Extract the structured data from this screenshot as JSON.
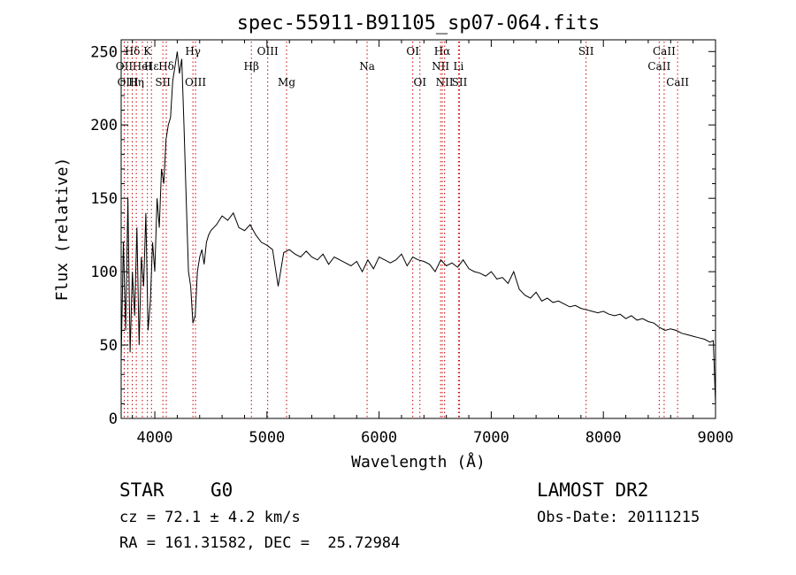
{
  "chart_data": {
    "type": "line",
    "title": "spec-55911-B91105_sp07-064.fits",
    "xlabel": "Wavelength (Å)",
    "ylabel": "Flux (relative)",
    "xlim": [
      3700,
      9000
    ],
    "ylim": [
      0,
      258
    ],
    "xticks": [
      4000,
      5000,
      6000,
      7000,
      8000,
      9000
    ],
    "yticks": [
      0,
      50,
      100,
      150,
      200,
      250
    ],
    "grid": false,
    "line_color": "#000000",
    "marker_color": "#cc0000",
    "series": [
      {
        "x": [
          3700,
          3720,
          3740,
          3760,
          3780,
          3800,
          3820,
          3840,
          3860,
          3880,
          3900,
          3920,
          3940,
          3960,
          3980,
          4000,
          4020,
          4040,
          4060,
          4080,
          4100,
          4120,
          4140,
          4160,
          4180,
          4200,
          4220,
          4240,
          4260,
          4280,
          4300,
          4320,
          4340,
          4360,
          4380,
          4400,
          4420,
          4440,
          4460,
          4480,
          4500,
          4550,
          4600,
          4650,
          4700,
          4750,
          4800,
          4850,
          4900,
          4950,
          5000,
          5050,
          5100,
          5150,
          5200,
          5250,
          5300,
          5350,
          5400,
          5450,
          5500,
          5550,
          5600,
          5650,
          5700,
          5750,
          5800,
          5850,
          5900,
          5950,
          6000,
          6050,
          6100,
          6150,
          6200,
          6250,
          6300,
          6350,
          6400,
          6450,
          6500,
          6550,
          6600,
          6650,
          6700,
          6750,
          6800,
          6850,
          6900,
          6950,
          7000,
          7050,
          7100,
          7150,
          7200,
          7250,
          7300,
          7350,
          7400,
          7450,
          7500,
          7550,
          7600,
          7650,
          7700,
          7750,
          7800,
          7850,
          7900,
          7950,
          8000,
          8050,
          8100,
          8150,
          8200,
          8250,
          8300,
          8350,
          8400,
          8450,
          8500,
          8550,
          8600,
          8650,
          8700,
          8750,
          8800,
          8850,
          8900,
          8950,
          8980,
          9000
        ],
        "y": [
          40,
          120,
          60,
          150,
          45,
          100,
          70,
          130,
          50,
          110,
          90,
          140,
          60,
          80,
          120,
          100,
          150,
          130,
          170,
          160,
          190,
          200,
          205,
          230,
          240,
          250,
          235,
          245,
          200,
          150,
          100,
          90,
          65,
          70,
          100,
          110,
          115,
          105,
          120,
          125,
          128,
          132,
          138,
          135,
          140,
          130,
          128,
          132,
          125,
          120,
          118,
          115,
          90,
          113,
          115,
          112,
          110,
          114,
          110,
          108,
          112,
          105,
          110,
          108,
          106,
          104,
          107,
          100,
          108,
          102,
          110,
          108,
          106,
          108,
          112,
          104,
          110,
          108,
          107,
          105,
          100,
          108,
          104,
          106,
          103,
          108,
          102,
          100,
          99,
          97,
          100,
          95,
          96,
          92,
          100,
          88,
          84,
          82,
          86,
          80,
          82,
          79,
          80,
          78,
          76,
          77,
          75,
          74,
          73,
          72,
          73,
          71,
          70,
          71,
          68,
          70,
          67,
          68,
          66,
          65,
          62,
          60,
          61,
          60,
          58,
          57,
          56,
          55,
          54,
          52,
          53,
          10
        ]
      }
    ],
    "line_markers": [
      {
        "label": "Hδ",
        "x": 3799,
        "row": 0
      },
      {
        "label": "K",
        "x": 3934,
        "row": 0
      },
      {
        "label": "OII",
        "x": 3727,
        "row": 1
      },
      {
        "label": "HeI",
        "x": 3889,
        "row": 1
      },
      {
        "label": "Hε",
        "x": 3970,
        "row": 1
      },
      {
        "label": "Hδ",
        "x": 4102,
        "row": 1
      },
      {
        "label": "OIII",
        "x": 3760,
        "row": 2
      },
      {
        "label": "Hη",
        "x": 3835,
        "row": 2
      },
      {
        "label": "SII",
        "x": 4072,
        "row": 2
      },
      {
        "label": "Hγ",
        "x": 4340,
        "row": 0
      },
      {
        "label": "OIII",
        "x": 4363,
        "row": 2
      },
      {
        "label": "Hβ",
        "x": 4861,
        "row": 1
      },
      {
        "label": "OIII",
        "x": 5007,
        "row": 0
      },
      {
        "label": "Mg",
        "x": 5175,
        "row": 2
      },
      {
        "label": "Na",
        "x": 5893,
        "row": 1
      },
      {
        "label": "OI",
        "x": 6300,
        "row": 0
      },
      {
        "label": "OI",
        "x": 6364,
        "row": 2
      },
      {
        "label": "Hα",
        "x": 6563,
        "row": 0
      },
      {
        "label": "NII",
        "x": 6548,
        "row": 1
      },
      {
        "label": "NII",
        "x": 6584,
        "row": 2
      },
      {
        "label": "Li",
        "x": 6708,
        "row": 1
      },
      {
        "label": "SII",
        "x": 6717,
        "row": 2
      },
      {
        "label": "SII",
        "x": 7846,
        "row": 0
      },
      {
        "label": "CaII",
        "x": 8498,
        "row": 1
      },
      {
        "label": "CaII",
        "x": 8542,
        "row": 0
      },
      {
        "label": "CaII",
        "x": 8662,
        "row": 2
      }
    ]
  },
  "info": {
    "class_label": "STAR",
    "subclass": "G0",
    "survey": "LAMOST DR2",
    "cz": "cz = 72.1 ± 4.2 km/s",
    "obs_date": "Obs-Date: 20111215",
    "coords": "RA = 161.31582, DEC =  25.72984"
  }
}
